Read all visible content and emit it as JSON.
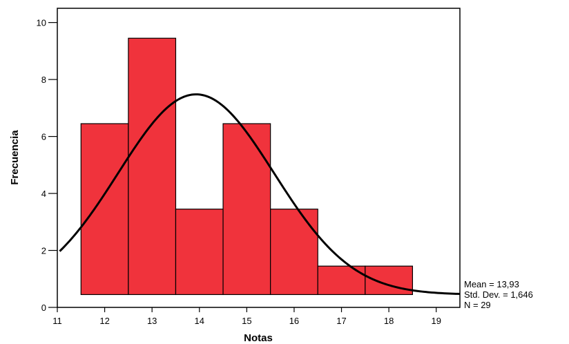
{
  "chart_data": {
    "type": "bar",
    "subtype": "histogram",
    "xlabel": "Notas",
    "ylabel": "Frecuencia",
    "xlim": [
      11,
      19.5
    ],
    "ylim": [
      0,
      10.5
    ],
    "xticks": [
      "11",
      "12",
      "13",
      "14",
      "15",
      "16",
      "17",
      "18",
      "19"
    ],
    "yticks": [
      "0",
      "2",
      "4",
      "6",
      "8",
      "10"
    ],
    "bins": [
      {
        "from": 11.5,
        "to": 12.5,
        "count": 6
      },
      {
        "from": 12.5,
        "to": 13.5,
        "count": 9
      },
      {
        "from": 13.5,
        "to": 14.5,
        "count": 3
      },
      {
        "from": 14.5,
        "to": 15.5,
        "count": 6
      },
      {
        "from": 15.5,
        "to": 16.5,
        "count": 3
      },
      {
        "from": 16.5,
        "to": 17.5,
        "count": 1
      },
      {
        "from": 17.5,
        "to": 18.5,
        "count": 1
      }
    ],
    "bar_color": "#f0333c",
    "normal_curve": {
      "mean": 13.93,
      "std_dev": 1.646,
      "n": 29,
      "bin_width": 1,
      "color": "#000000"
    },
    "grid": false
  },
  "stats": {
    "mean_label": "Mean = 13,93",
    "std_label": "Std. Dev. = 1,646",
    "n_label": "N = 29"
  }
}
